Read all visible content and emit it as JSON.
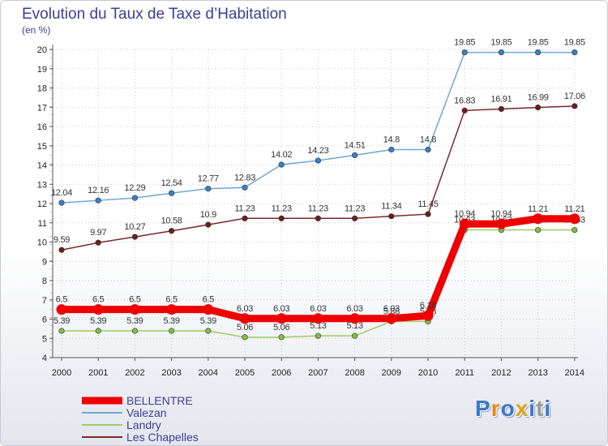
{
  "chart_data": {
    "type": "line",
    "title": "Evolution du Taux de Taxe d’Habitation",
    "ylabel": "(en %)",
    "xlabel": "",
    "x": [
      "2000",
      "2001",
      "2002",
      "2003",
      "2004",
      "2005",
      "2006",
      "2007",
      "2008",
      "2009",
      "2010",
      "2011",
      "2012",
      "2013",
      "2014"
    ],
    "ylim": [
      4,
      20
    ],
    "yticks": [
      "4",
      "5",
      "6",
      "7",
      "8",
      "9",
      "10",
      "11",
      "12",
      "13",
      "14",
      "15",
      "16",
      "17",
      "18",
      "19",
      "20"
    ],
    "legend_position": "bottom-left",
    "series": [
      {
        "name": "Valezan",
        "color": "#6fa8d6",
        "marker": "#3b7fc4",
        "values": [
          12.04,
          12.16,
          12.29,
          12.54,
          12.77,
          12.83,
          14.02,
          14.23,
          14.51,
          14.8,
          14.8,
          19.85,
          19.85,
          19.85,
          19.85
        ],
        "labels": [
          "12.04",
          "12.16",
          "12.29",
          "12.54",
          "12.77",
          "12.83",
          "14.02",
          "14.23",
          "14.51",
          "14.8",
          "14.8",
          "19.85",
          "19.85",
          "19.85",
          "19.85"
        ]
      },
      {
        "name": "Les Chapelles",
        "color": "#7a2a2a",
        "marker": "#6a1f1f",
        "values": [
          9.59,
          9.97,
          10.27,
          10.58,
          10.9,
          11.23,
          11.23,
          11.23,
          11.23,
          11.34,
          11.45,
          16.83,
          16.91,
          16.99,
          17.06
        ],
        "labels": [
          "9.59",
          "9.97",
          "10.27",
          "10.58",
          "10.9",
          "11.23",
          "11.23",
          "11.23",
          "11.23",
          "11.34",
          "11.45",
          "16.83",
          "16.91",
          "16.99",
          "17.06"
        ]
      },
      {
        "name": "Landry",
        "color": "#9ccc66",
        "marker": "#7fbf3f",
        "values": [
          5.39,
          5.39,
          5.39,
          5.39,
          5.39,
          5.06,
          5.06,
          5.13,
          5.13,
          5.88,
          5.88,
          10.63,
          10.63,
          10.63,
          10.63
        ],
        "labels": [
          "5.39",
          "5.39",
          "5.39",
          "5.39",
          "5.39",
          "5.06",
          "5.06",
          "5.13",
          "5.13",
          "5.88",
          "5.88",
          "10.63",
          "10.63",
          "10.63",
          "10.63"
        ]
      },
      {
        "name": "BELLENTRE",
        "color": "#ee0000",
        "marker": "#ee0000",
        "values": [
          6.5,
          6.5,
          6.5,
          6.5,
          6.5,
          6.03,
          6.03,
          6.03,
          6.03,
          6.03,
          6.18,
          10.94,
          10.94,
          11.21,
          11.21
        ],
        "labels": [
          "6.5",
          "6.5",
          "6.5",
          "6.5",
          "6.5",
          "6.03",
          "6.03",
          "6.03",
          "6.03",
          "6.03",
          "6.18",
          "10.94",
          "10.94",
          "11.21",
          "11.21"
        ]
      }
    ],
    "legend": [
      "BELLENTRE",
      "Valezan",
      "Landry",
      "Les Chapelles"
    ]
  },
  "logo": {
    "letters": [
      "P",
      "r",
      "o",
      "x",
      "i",
      "t",
      "i"
    ],
    "colors": [
      "#3a78c8",
      "#e08a1e",
      "#3a78c8",
      "#e0a21e",
      "#3a78c8",
      "#9a9a9a",
      "#3a78c8"
    ]
  }
}
